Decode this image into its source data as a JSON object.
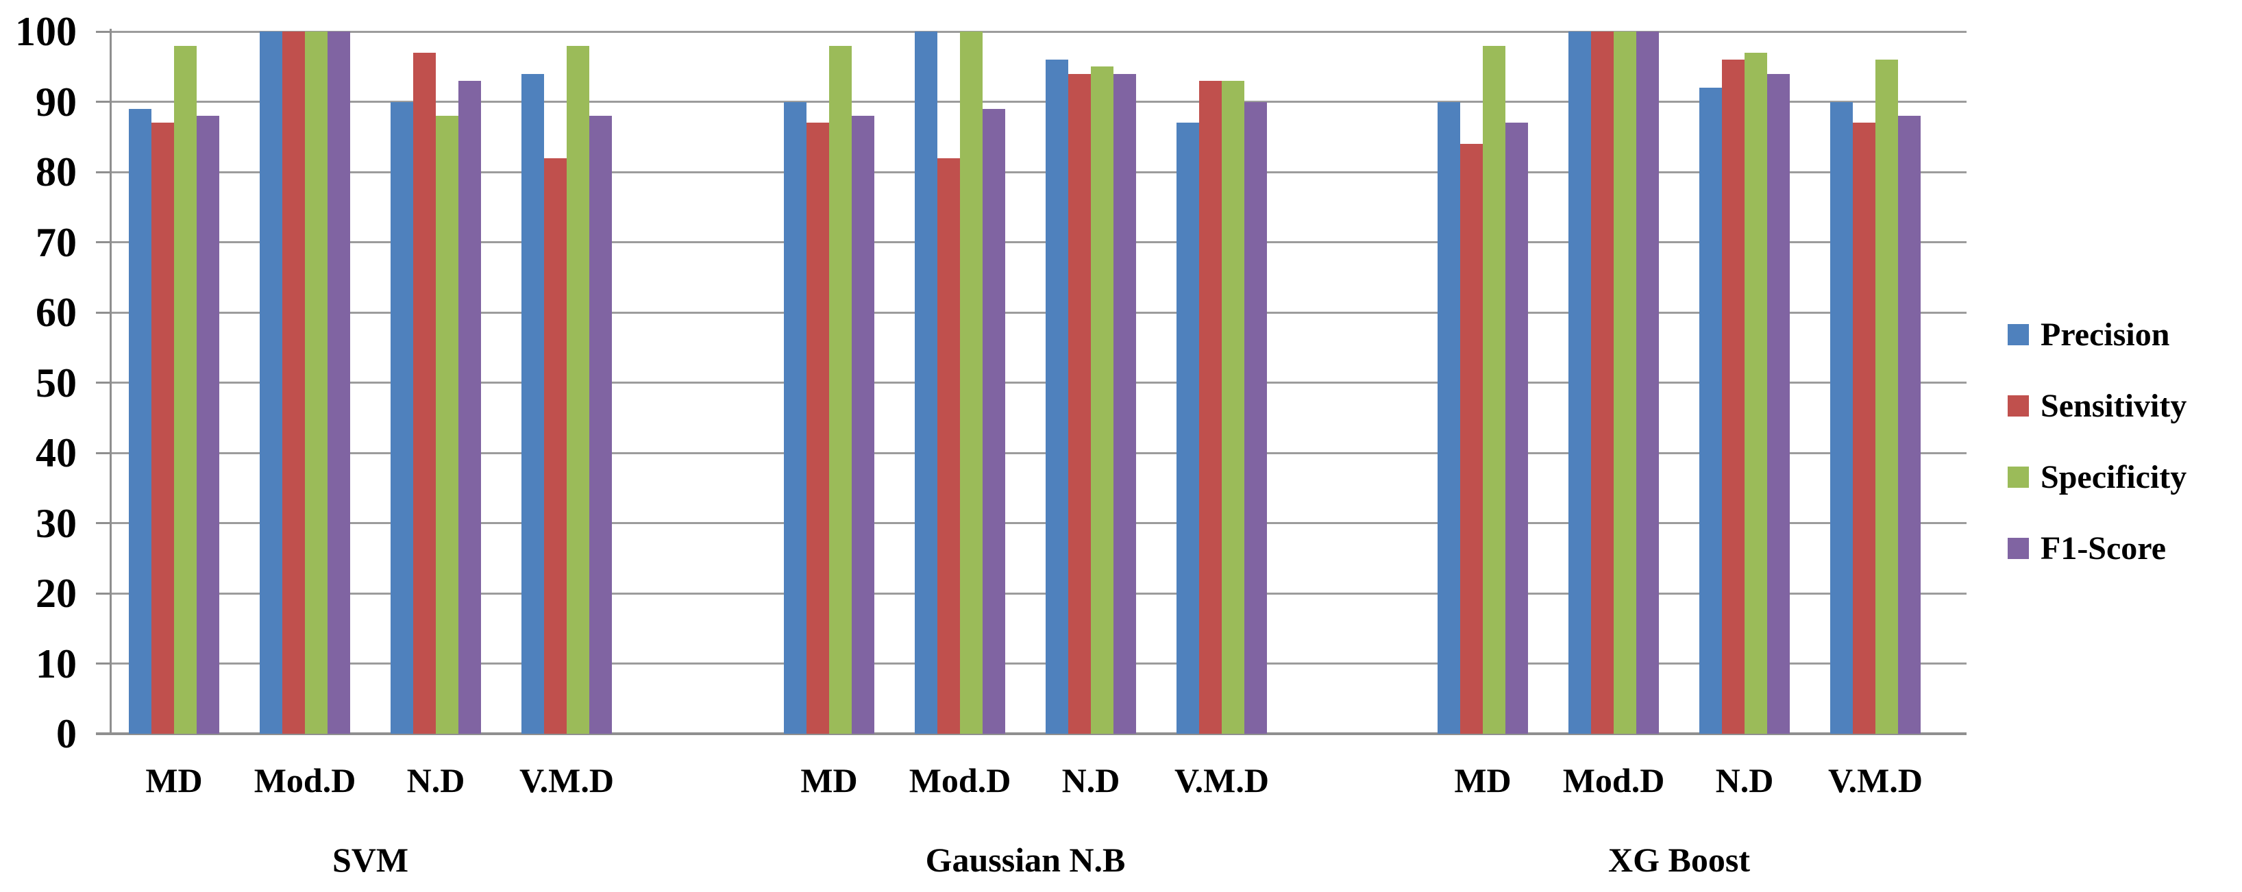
{
  "chart_data": {
    "type": "bar",
    "variant": "grouped-vertical",
    "title": "",
    "xlabel": "",
    "ylabel": "",
    "ylim": [
      0,
      100
    ],
    "yticks": [
      0,
      10,
      20,
      30,
      40,
      50,
      60,
      70,
      80,
      90,
      100
    ],
    "grid": true,
    "legend_position": "right",
    "series_names": [
      "Precision",
      "Sensitivity",
      "Specificity",
      "F1-Score"
    ],
    "series_colors": [
      "#4F81BD",
      "#C0504D",
      "#9BBB59",
      "#8064A2"
    ],
    "groups": [
      {
        "label": "SVM",
        "clusters": [
          {
            "category": "MD",
            "values": [
              89,
              87,
              98,
              88
            ]
          },
          {
            "category": "Mod.D",
            "values": [
              100,
              100,
              100,
              100
            ]
          },
          {
            "category": "N.D",
            "values": [
              90,
              97,
              88,
              93
            ]
          },
          {
            "category": "V.M.D",
            "values": [
              94,
              82,
              98,
              88
            ]
          }
        ]
      },
      {
        "label": "Gaussian N.B",
        "clusters": [
          {
            "category": "MD",
            "values": [
              90,
              87,
              98,
              88
            ]
          },
          {
            "category": "Mod.D",
            "values": [
              100,
              82,
              100,
              89
            ]
          },
          {
            "category": "N.D",
            "values": [
              96,
              94,
              95,
              94
            ]
          },
          {
            "category": "V.M.D",
            "values": [
              87,
              93,
              93,
              90
            ]
          }
        ]
      },
      {
        "label": "XG Boost",
        "clusters": [
          {
            "category": "MD",
            "values": [
              90,
              84,
              98,
              87
            ]
          },
          {
            "category": "Mod.D",
            "values": [
              100,
              100,
              100,
              100
            ]
          },
          {
            "category": "N.D",
            "values": [
              92,
              96,
              97,
              94
            ]
          },
          {
            "category": "V.M.D",
            "values": [
              90,
              87,
              96,
              88
            ]
          }
        ]
      }
    ],
    "legend": [
      {
        "label": "Precision",
        "color": "#4F81BD"
      },
      {
        "label": "Sensitivity",
        "color": "#C0504D"
      },
      {
        "label": "Specificity",
        "color": "#9BBB59"
      },
      {
        "label": "F1-Score",
        "color": "#8064A2"
      }
    ]
  },
  "style_colors": {
    "gridline": "#9C9C9C",
    "axis": "#8F8F8F",
    "text": "#000000",
    "background": "#FFFFFF"
  }
}
